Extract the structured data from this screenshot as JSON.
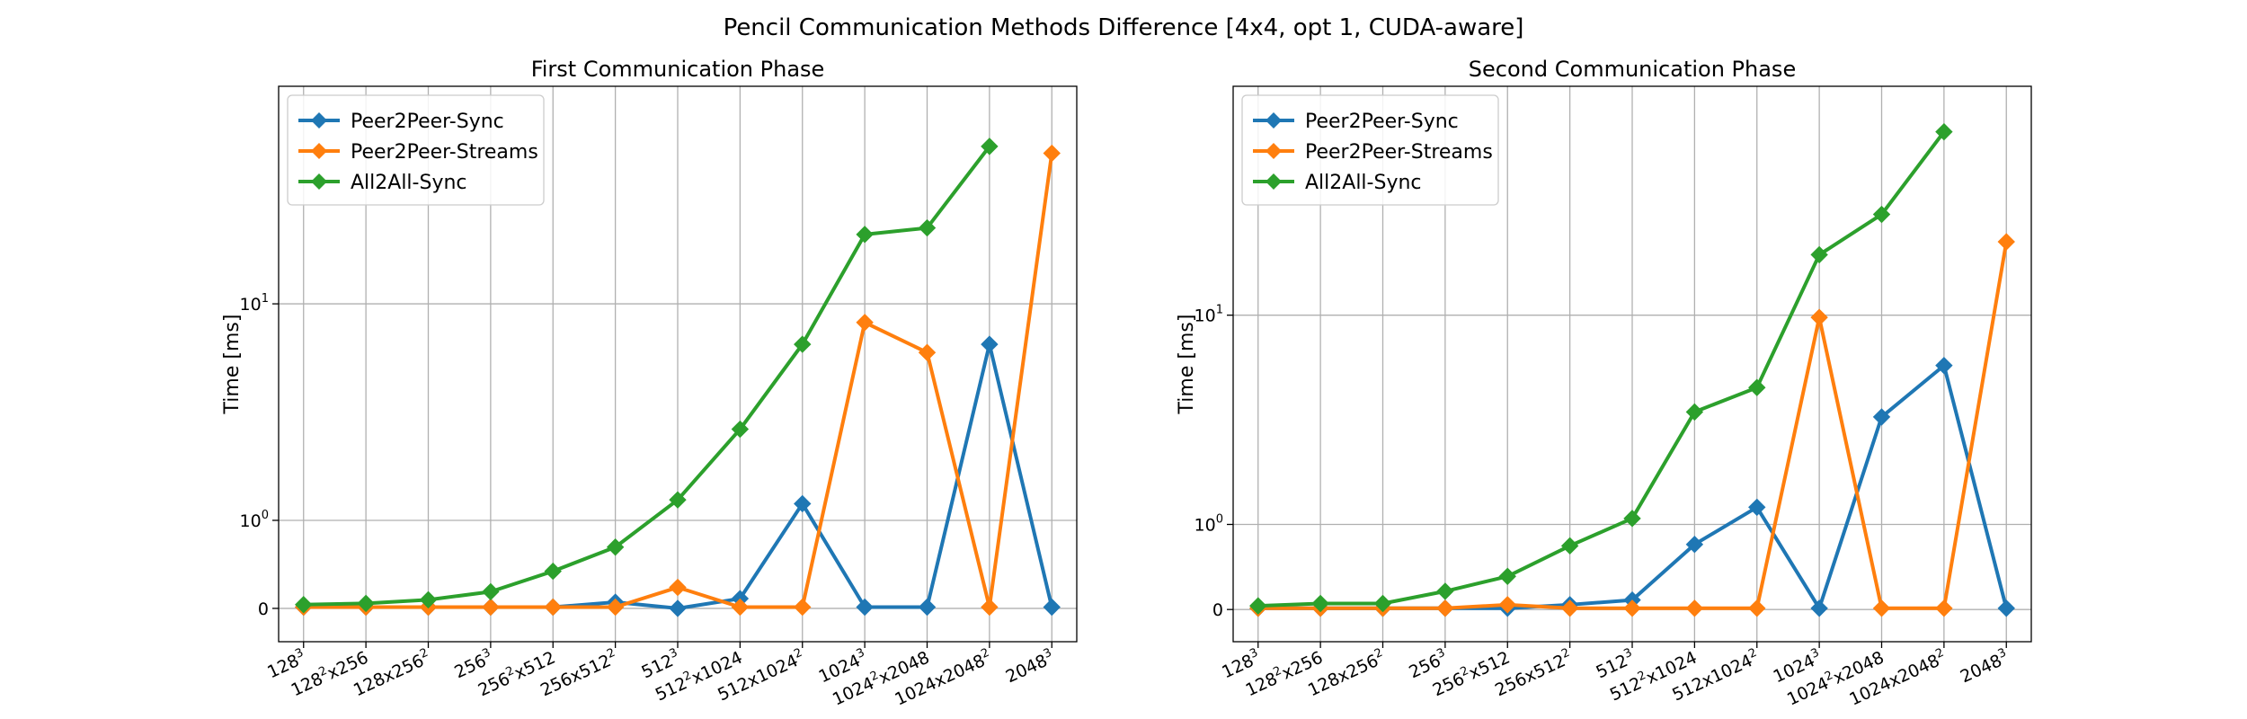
{
  "figure": {
    "title": "Pencil Communication Methods Difference [4x4, opt 1, CUDA-aware]"
  },
  "chart_data": [
    {
      "type": "line",
      "title": "First Communication Phase",
      "xlabel": "",
      "ylabel": "Time [ms]",
      "yscale": "symlog",
      "yticks": [
        {
          "value": 0,
          "base": "0",
          "exp": ""
        },
        {
          "value": 1,
          "base": "10",
          "exp": "0"
        },
        {
          "value": 10,
          "base": "10",
          "exp": "1"
        }
      ],
      "ylim": [
        -0.3,
        60
      ],
      "grid": true,
      "legend": "top-left",
      "categories": [
        {
          "base": "128",
          "sup": "3",
          "tail": ""
        },
        {
          "base": "128",
          "sup": "2",
          "tail": "x256"
        },
        {
          "base": "128x256",
          "sup": "2",
          "tail": ""
        },
        {
          "base": "256",
          "sup": "3",
          "tail": ""
        },
        {
          "base": "256",
          "sup": "2",
          "tail": "x512"
        },
        {
          "base": "256x512",
          "sup": "2",
          "tail": ""
        },
        {
          "base": "512",
          "sup": "3",
          "tail": ""
        },
        {
          "base": "512",
          "sup": "2",
          "tail": "x1024"
        },
        {
          "base": "512x1024",
          "sup": "2",
          "tail": ""
        },
        {
          "base": "1024",
          "sup": "3",
          "tail": ""
        },
        {
          "base": "1024",
          "sup": "2",
          "tail": "x2048"
        },
        {
          "base": "1024x2048",
          "sup": "2",
          "tail": ""
        },
        {
          "base": "2048",
          "sup": "3",
          "tail": ""
        }
      ],
      "series": [
        {
          "name": "Peer2Peer-Sync",
          "color": "#1f77b4",
          "values": [
            0.01,
            0.01,
            0.01,
            0.01,
            0.01,
            0.05,
            0.0,
            0.08,
            1.28,
            0.01,
            0.01,
            7.0,
            0.01
          ]
        },
        {
          "name": "Peer2Peer-Streams",
          "color": "#ff7f0e",
          "values": [
            0.01,
            0.01,
            0.01,
            0.01,
            0.01,
            0.01,
            0.18,
            0.01,
            0.01,
            8.5,
            6.5,
            0.01,
            35.0
          ]
        },
        {
          "name": "All2All-Sync",
          "color": "#2ca02c",
          "values": [
            0.03,
            0.04,
            0.07,
            0.14,
            0.34,
            0.62,
            1.35,
            3.1,
            7.0,
            18.0,
            19.0,
            37.0,
            null
          ]
        }
      ]
    },
    {
      "type": "line",
      "title": "Second Communication Phase",
      "xlabel": "",
      "ylabel": "Time [ms]",
      "yscale": "symlog",
      "yticks": [
        {
          "value": 0,
          "base": "0",
          "exp": ""
        },
        {
          "value": 1,
          "base": "10",
          "exp": "0"
        },
        {
          "value": 10,
          "base": "10",
          "exp": "1"
        }
      ],
      "ylim": [
        -0.3,
        70
      ],
      "grid": true,
      "legend": "top-left",
      "categories": [
        {
          "base": "128",
          "sup": "3",
          "tail": ""
        },
        {
          "base": "128",
          "sup": "2",
          "tail": "x256"
        },
        {
          "base": "128x256",
          "sup": "2",
          "tail": ""
        },
        {
          "base": "256",
          "sup": "3",
          "tail": ""
        },
        {
          "base": "256",
          "sup": "2",
          "tail": "x512"
        },
        {
          "base": "256x512",
          "sup": "2",
          "tail": ""
        },
        {
          "base": "512",
          "sup": "3",
          "tail": ""
        },
        {
          "base": "512",
          "sup": "2",
          "tail": "x1024"
        },
        {
          "base": "512x1024",
          "sup": "2",
          "tail": ""
        },
        {
          "base": "1024",
          "sup": "3",
          "tail": ""
        },
        {
          "base": "1024",
          "sup": "2",
          "tail": "x2048"
        },
        {
          "base": "1024x2048",
          "sup": "2",
          "tail": ""
        },
        {
          "base": "2048",
          "sup": "3",
          "tail": ""
        }
      ],
      "series": [
        {
          "name": "Peer2Peer-Sync",
          "color": "#1f77b4",
          "values": [
            0.01,
            0.01,
            0.01,
            0.01,
            0.01,
            0.04,
            0.08,
            0.7,
            1.3,
            0.01,
            3.8,
            6.3,
            0.01
          ]
        },
        {
          "name": "Peer2Peer-Streams",
          "color": "#ff7f0e",
          "values": [
            0.01,
            0.01,
            0.01,
            0.01,
            0.04,
            0.01,
            0.01,
            0.01,
            0.01,
            9.8,
            0.01,
            0.01,
            19.0
          ]
        },
        {
          "name": "All2All-Sync",
          "color": "#2ca02c",
          "values": [
            0.03,
            0.05,
            0.05,
            0.16,
            0.31,
            0.68,
            1.1,
            4.0,
            5.1,
            17.0,
            24.0,
            48.0,
            null
          ]
        }
      ]
    }
  ]
}
